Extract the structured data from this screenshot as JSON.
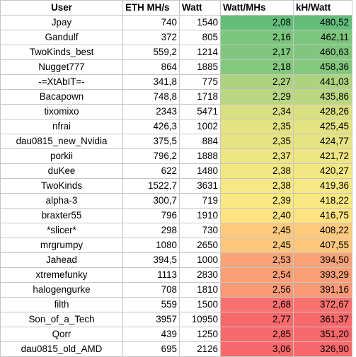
{
  "headers": {
    "user": "User",
    "eth": "ETH MH/s",
    "watt": "Watt",
    "wpm": "Watt/MHs",
    "khw": "kH/Watt"
  },
  "rows": [
    {
      "user": "Jpay",
      "eth": "740",
      "watt": "1540",
      "wpm": "2,08",
      "khw": "480,52",
      "wpm_color": "#63be7b",
      "khw_color": "#63be7b"
    },
    {
      "user": "Gandulf",
      "eth": "372",
      "watt": "805",
      "wpm": "2,16",
      "khw": "462,11",
      "wpm_color": "#7cc67c",
      "khw_color": "#7dc67d"
    },
    {
      "user": "TwoKinds_best",
      "eth": "559,2",
      "watt": "1214",
      "wpm": "2,17",
      "khw": "460,63",
      "wpm_color": "#80c77d",
      "khw_color": "#80c77d"
    },
    {
      "user": "Nugget777",
      "eth": "864",
      "watt": "1885",
      "wpm": "2,18",
      "khw": "458,36",
      "wpm_color": "#84c87d",
      "khw_color": "#84c87e"
    },
    {
      "user": "-=XtAbIT=-",
      "eth": "341,8",
      "watt": "775",
      "wpm": "2,27",
      "khw": "441,03",
      "wpm_color": "#aed37f",
      "khw_color": "#aed37f"
    },
    {
      "user": "Bacapown",
      "eth": "748,8",
      "watt": "1718",
      "wpm": "2,29",
      "khw": "435,86",
      "wpm_color": "#b9d780",
      "khw_color": "#bad780"
    },
    {
      "user": "tixomixo",
      "eth": "2343",
      "watt": "5471",
      "wpm": "2,34",
      "khw": "428,26",
      "wpm_color": "#d9e081",
      "khw_color": "#d9e081"
    },
    {
      "user": "nfrai",
      "eth": "426,3",
      "watt": "1002",
      "wpm": "2,35",
      "khw": "425,45",
      "wpm_color": "#e3e382",
      "khw_color": "#e3e382"
    },
    {
      "user": "dau0815_new_Nvidia",
      "eth": "375,5",
      "watt": "884",
      "wpm": "2,35",
      "khw": "424,77",
      "wpm_color": "#e5e382",
      "khw_color": "#e5e382"
    },
    {
      "user": "porkii",
      "eth": "796,2",
      "watt": "1888",
      "wpm": "2,37",
      "khw": "421,72",
      "wpm_color": "#eee583",
      "khw_color": "#eee583"
    },
    {
      "user": "duKee",
      "eth": "622",
      "watt": "1480",
      "wpm": "2,38",
      "khw": "420,27",
      "wpm_color": "#f2e783",
      "khw_color": "#f3e783"
    },
    {
      "user": "TwoKinds",
      "eth": "1522,7",
      "watt": "3631",
      "wpm": "2,38",
      "khw": "419,36",
      "wpm_color": "#f6e883",
      "khw_color": "#f6e883"
    },
    {
      "user": "alpha-3",
      "eth": "300,7",
      "watt": "719",
      "wpm": "2,39",
      "khw": "418,22",
      "wpm_color": "#fae983",
      "khw_color": "#fae983"
    },
    {
      "user": "braxter55",
      "eth": "796",
      "watt": "1910",
      "wpm": "2,40",
      "khw": "416,75",
      "wpm_color": "#fee382",
      "khw_color": "#fee382"
    },
    {
      "user": "*slicer*",
      "eth": "298",
      "watt": "730",
      "wpm": "2,45",
      "khw": "408,22",
      "wpm_color": "#fdc97d",
      "khw_color": "#fdc97d"
    },
    {
      "user": "mrgrumpy",
      "eth": "1080",
      "watt": "2650",
      "wpm": "2,45",
      "khw": "407,55",
      "wpm_color": "#fdc77d",
      "khw_color": "#fdc77d"
    },
    {
      "user": "Jahead",
      "eth": "394,5",
      "watt": "1000",
      "wpm": "2,53",
      "khw": "394,50",
      "wpm_color": "#fba277",
      "khw_color": "#fba277"
    },
    {
      "user": "xtremefunky",
      "eth": "1113",
      "watt": "2830",
      "wpm": "2,54",
      "khw": "393,29",
      "wpm_color": "#fb9f76",
      "khw_color": "#fb9f76"
    },
    {
      "user": "halogengurke",
      "eth": "708",
      "watt": "1810",
      "wpm": "2,56",
      "khw": "391,16",
      "wpm_color": "#fb9a76",
      "khw_color": "#fb9a76"
    },
    {
      "user": "filth",
      "eth": "559",
      "watt": "1500",
      "wpm": "2,68",
      "khw": "372,67",
      "wpm_color": "#f9706e",
      "khw_color": "#f9726e"
    },
    {
      "user": "Son_of_a_Tech",
      "eth": "3957",
      "watt": "10950",
      "wpm": "2,77",
      "khw": "361,37",
      "wpm_color": "#f8696b",
      "khw_color": "#f8696b"
    },
    {
      "user": "Qorr",
      "eth": "439",
      "watt": "1250",
      "wpm": "2,85",
      "khw": "351,20",
      "wpm_color": "#f8696b",
      "khw_color": "#f8696b"
    },
    {
      "user": "dau0815_old_AMD",
      "eth": "695",
      "watt": "2126",
      "wpm": "3,06",
      "khw": "326,90",
      "wpm_color": "#f8696b",
      "khw_color": "#f8696b"
    }
  ]
}
